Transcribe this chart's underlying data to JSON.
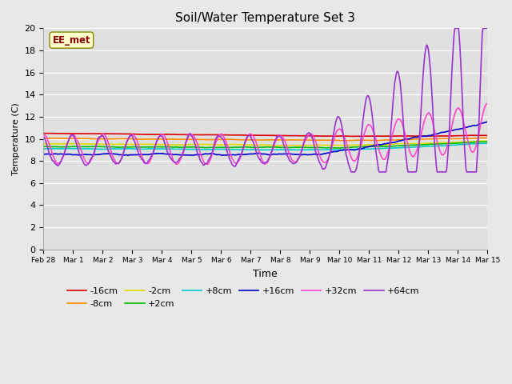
{
  "title": "Soil/Water Temperature Set 3",
  "xlabel": "Time",
  "ylabel": "Temperature (C)",
  "ylim": [
    0,
    20
  ],
  "yticks": [
    0,
    2,
    4,
    6,
    8,
    10,
    12,
    14,
    16,
    18,
    20
  ],
  "fig_bg": "#e8e8e8",
  "plot_bg": "#e0e0e0",
  "watermark": "EE_met",
  "series_colors": {
    "-16cm": "#dd0000",
    "-8cm": "#ff8800",
    "-2cm": "#dddd00",
    "+2cm": "#00bb00",
    "+8cm": "#00cccc",
    "+16cm": "#0000cc",
    "+32cm": "#ff44cc",
    "+64cm": "#9933cc"
  },
  "legend_order": [
    "-16cm",
    "-8cm",
    "-2cm",
    "+2cm",
    "+8cm",
    "+16cm",
    "+32cm",
    "+64cm"
  ]
}
